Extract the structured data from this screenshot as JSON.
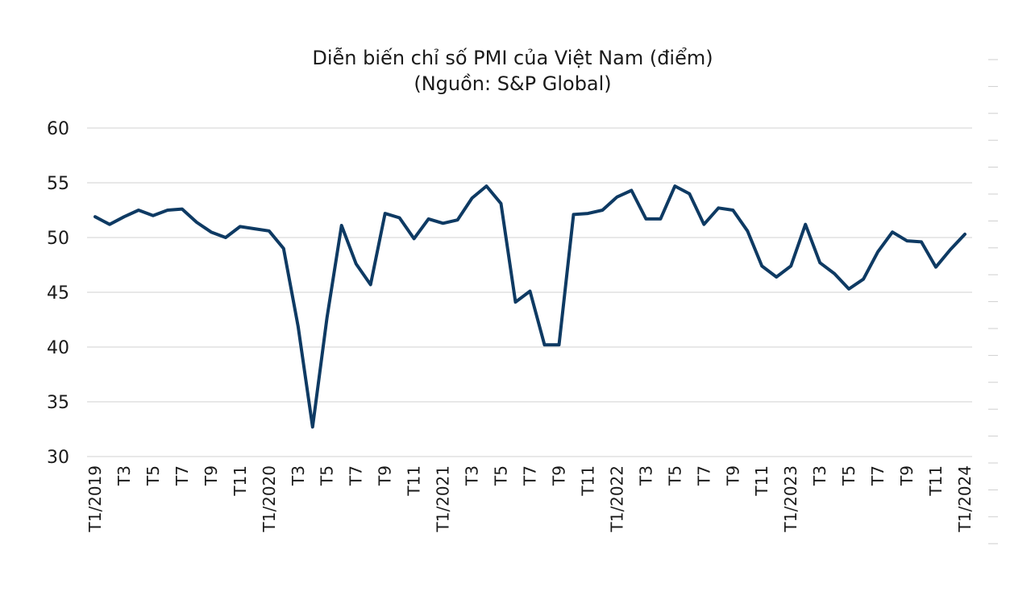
{
  "chart_data": {
    "type": "line",
    "title": "Diễn biến chỉ số PMI của Việt Nam (điểm)",
    "subtitle": "(Nguồn: S&P Global)",
    "xlabel": "",
    "ylabel": "",
    "ylim": [
      30,
      60
    ],
    "yticks": [
      "30",
      "35",
      "40",
      "45",
      "50",
      "55",
      "60"
    ],
    "grid": true,
    "legend": "none",
    "colors": {
      "series": "#0e3a63",
      "grid": "#d9d9d9"
    },
    "categories": [
      "T1/2019",
      "T2",
      "T3",
      "T4",
      "T5",
      "T6",
      "T7",
      "T8",
      "T9",
      "T10",
      "T11",
      "T12",
      "T1/2020",
      "T2",
      "T3",
      "T4",
      "T5",
      "T6",
      "T7",
      "T8",
      "T9",
      "T10",
      "T11",
      "T12",
      "T1/2021",
      "T2",
      "T3",
      "T4",
      "T5",
      "T6",
      "T7",
      "T8",
      "T9",
      "T10",
      "T11",
      "T12",
      "T1/2022",
      "T2",
      "T3",
      "T4",
      "T5",
      "T6",
      "T7",
      "T8",
      "T9",
      "T10",
      "T11",
      "T12",
      "T1/2023",
      "T2",
      "T3",
      "T4",
      "T5",
      "T6",
      "T7",
      "T8",
      "T9",
      "T10",
      "T11",
      "T12",
      "T1/2024"
    ],
    "tick_labels": [
      "T1/2019",
      "",
      "T3",
      "",
      "T5",
      "",
      "T7",
      "",
      "T9",
      "",
      "T11",
      "",
      "T1/2020",
      "",
      "T3",
      "",
      "T5",
      "",
      "T7",
      "",
      "T9",
      "",
      "T11",
      "",
      "T1/2021",
      "",
      "T3",
      "",
      "T5",
      "",
      "T7",
      "",
      "T9",
      "",
      "T11",
      "",
      "T1/2022",
      "",
      "T3",
      "",
      "T5",
      "",
      "T7",
      "",
      "T9",
      "",
      "T11",
      "",
      "T1/2023",
      "",
      "T3",
      "",
      "T5",
      "",
      "T7",
      "",
      "T9",
      "",
      "T11",
      "",
      "T1/2024"
    ],
    "series": [
      {
        "values": [
          51.9,
          51.2,
          51.9,
          52.5,
          52.0,
          52.5,
          52.6,
          51.4,
          50.5,
          50.0,
          51.0,
          50.8,
          50.6,
          49.0,
          41.9,
          32.7,
          42.7,
          51.1,
          47.6,
          45.7,
          52.2,
          51.8,
          49.9,
          51.7,
          51.3,
          51.6,
          53.6,
          54.7,
          53.1,
          44.1,
          45.1,
          40.2,
          40.2,
          52.1,
          52.2,
          52.5,
          53.7,
          54.3,
          51.7,
          51.7,
          54.7,
          54.0,
          51.2,
          52.7,
          52.5,
          50.6,
          47.4,
          46.4,
          47.4,
          51.2,
          47.7,
          46.7,
          45.3,
          46.2,
          48.7,
          50.5,
          49.7,
          49.6,
          47.3,
          48.9,
          50.3
        ]
      }
    ]
  }
}
